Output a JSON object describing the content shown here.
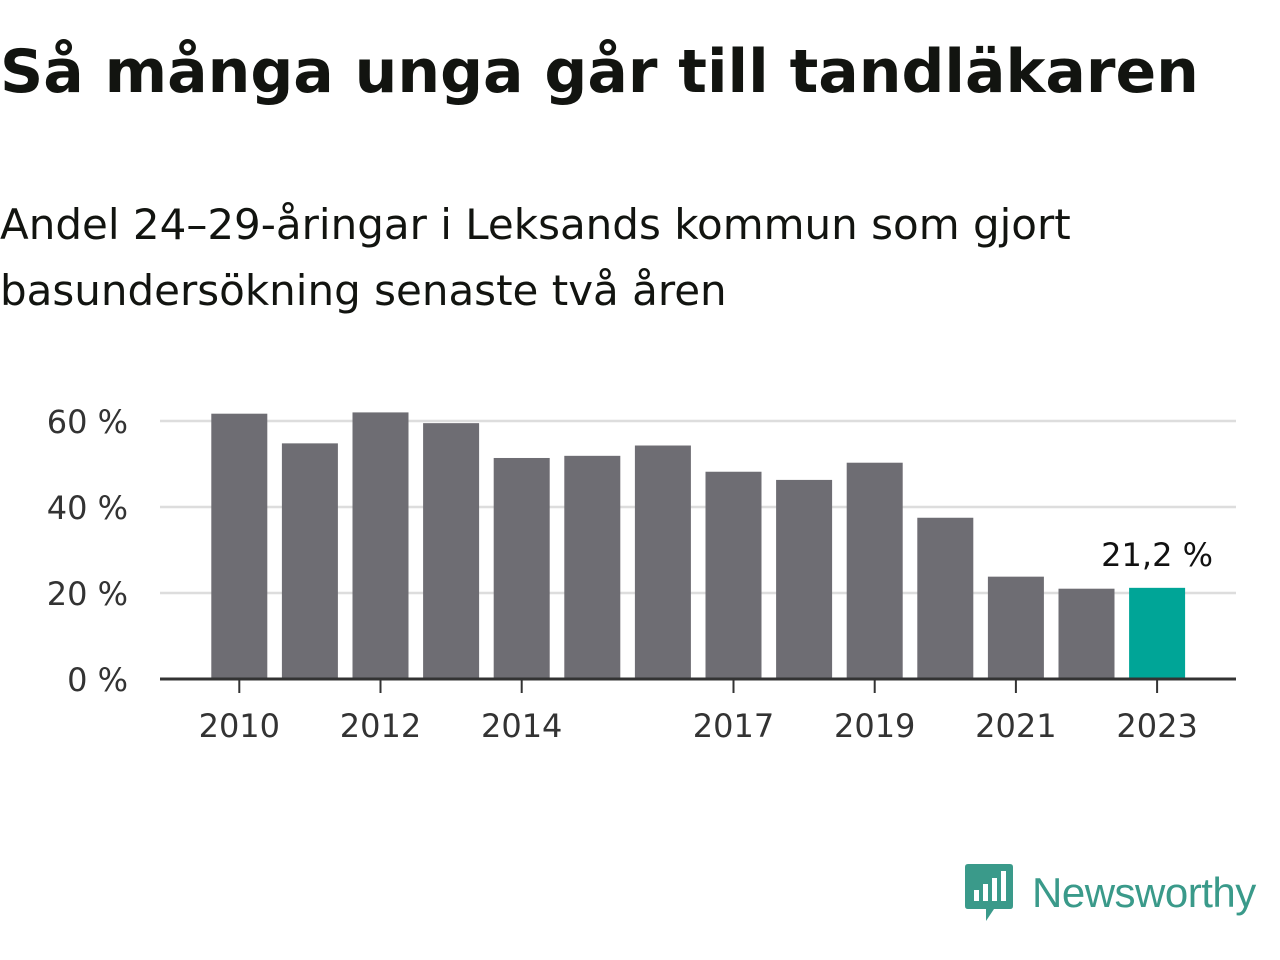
{
  "title": "Så många unga går till tandläkaren",
  "subtitle": "Andel 24–29-åringar i Leksands kommun som gjort basundersökning senaste två åren",
  "brand": {
    "name": "Newsworthy",
    "icon": "newsworthy-logo-icon",
    "color": "#3a9a8a"
  },
  "chart_data": {
    "type": "bar",
    "categories": [
      "2010",
      "2011",
      "2012",
      "2013",
      "2014",
      "2015",
      "2016",
      "2017",
      "2018",
      "2019",
      "2020",
      "2021",
      "2022",
      "2023"
    ],
    "values": [
      61.7,
      54.8,
      62.0,
      59.5,
      51.4,
      51.9,
      54.3,
      48.2,
      46.3,
      50.3,
      37.5,
      23.8,
      21.0,
      21.2
    ],
    "tick_labels": [
      "2010",
      "",
      "2012",
      "",
      "2014",
      "",
      "",
      "2017",
      "",
      "2019",
      "",
      "2021",
      "",
      "2023"
    ],
    "y_ticks": [
      0,
      20,
      40,
      60
    ],
    "y_tick_labels": [
      "0 %",
      "20 %",
      "40 %",
      "60 %"
    ],
    "ylim": [
      0,
      60
    ],
    "grid": true,
    "highlight_index": 13,
    "highlight_label": "21,2 %",
    "colors": {
      "bar": "#6e6d73",
      "highlight": "#00a597",
      "grid": "#dddddd",
      "axis": "#333333"
    }
  }
}
